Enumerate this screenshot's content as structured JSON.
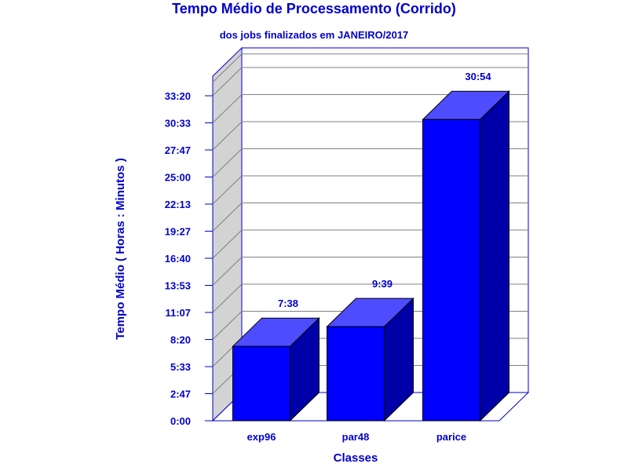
{
  "chart_data": {
    "type": "bar",
    "title": "Tempo Médio de Processamento (Corrido)",
    "subtitle": "dos jobs finalizados em JANEIRO/2017",
    "xlabel": "Classes",
    "ylabel": "Tempo Médio ( Horas : Minutos )",
    "categories": [
      "exp96",
      "par48",
      "parice"
    ],
    "values": [
      7.633,
      9.65,
      30.9
    ],
    "value_labels": [
      "7:38",
      "9:39",
      "30:54"
    ],
    "ylim": [
      0,
      33.333
    ],
    "yticks": [
      0,
      2.778,
      5.556,
      8.333,
      11.111,
      13.889,
      16.667,
      19.444,
      22.222,
      25.0,
      27.778,
      30.556,
      33.333
    ],
    "ytick_labels": [
      "0:00",
      "2:47",
      "5:33",
      "8:20",
      "11:07",
      "13:53",
      "16:40",
      "19:27",
      "22:13",
      "25:00",
      "27:47",
      "30:33",
      "33:20"
    ],
    "grid": true,
    "colors": {
      "bar_front": "#0000ff",
      "bar_top": "#4d4dff",
      "bar_side": "#0000a8",
      "text": "#0000cc",
      "wall": "#d3d3d3",
      "frame": "#0000cc",
      "grid": "#808080"
    }
  }
}
